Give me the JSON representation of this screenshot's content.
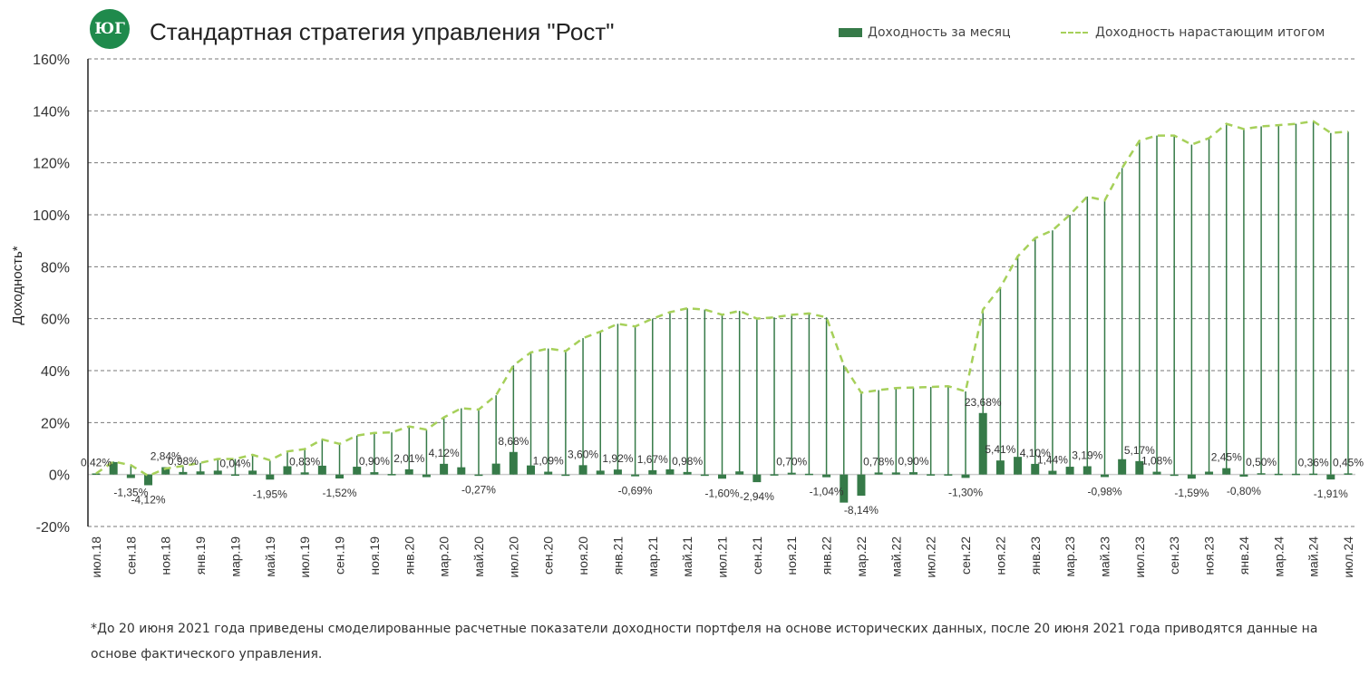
{
  "header": {
    "title": "Стандартная стратегия управления \"Рост\"",
    "logo_text": "ЮГ"
  },
  "legend": {
    "bar": "Доходность за месяц",
    "line": "Доходность нарастающим итогом"
  },
  "footnote": "*До 20 июня 2021 года приведены смоделированные расчетные показатели доходности портфеля на основе исторических данных, после 20 июня 2021 года приводятся данные на основе фактического управления.",
  "chart_data": {
    "type": "bar+line",
    "title": "Стандартная стратегия управления \"Рост\"",
    "ylabel": "Доходность*",
    "xlabel": "",
    "ylim": [
      -20,
      160
    ],
    "yticks": [
      "-20%",
      "0%",
      "20%",
      "40%",
      "60%",
      "80%",
      "100%",
      "120%",
      "140%",
      "160%"
    ],
    "ytick_values": [
      -20,
      0,
      20,
      40,
      60,
      80,
      100,
      120,
      140,
      160
    ],
    "grid": true,
    "legend_placement": "top-right",
    "colors": {
      "bar": "#367a48",
      "line": "#a6d05a",
      "drop": "#367a48"
    },
    "xtick_labels": [
      "июл.18",
      "сен.18",
      "ноя.18",
      "янв.19",
      "мар.19",
      "май.19",
      "июл.19",
      "сен.19",
      "ноя.19",
      "янв.20",
      "мар.20",
      "май.20",
      "июл.20",
      "сен.20",
      "ноя.20",
      "янв.21",
      "мар.21",
      "май.21",
      "июл.21",
      "сен.21",
      "ноя.21",
      "янв.22",
      "мар.22",
      "май.22",
      "июл.22",
      "сен.22",
      "ноя.22",
      "янв.23",
      "мар.23",
      "май.23",
      "июл.23",
      "сен.23",
      "ноя.23",
      "янв.24",
      "мар.24",
      "май.24",
      "июл.24"
    ],
    "series": [
      {
        "name": "Доходность за месяц",
        "type": "bar",
        "values": [
          0.42,
          4.8,
          -1.35,
          -4.12,
          2.84,
          0.98,
          1.2,
          1.5,
          0.04,
          1.5,
          -1.95,
          3.2,
          0.83,
          3.4,
          -1.52,
          3.0,
          0.9,
          0.2,
          2.01,
          -1.0,
          4.12,
          2.8,
          -0.27,
          4.2,
          8.68,
          3.5,
          1.09,
          -0.3,
          3.6,
          1.5,
          1.92,
          -0.69,
          1.67,
          2.0,
          0.98,
          -0.2,
          -1.6,
          1.2,
          -2.94,
          0.1,
          0.7,
          0.3,
          -1.04,
          -10.8,
          -8.14,
          0.78,
          0.8,
          0.9,
          0.1,
          0.1,
          -1.3,
          23.68,
          5.41,
          6.8,
          4.1,
          1.44,
          3.0,
          3.19,
          -0.98,
          5.9,
          5.17,
          1.08,
          0,
          -1.59,
          1.1,
          2.45,
          -0.8,
          0.5,
          0.3,
          0.3,
          0.36,
          -1.91,
          0.45
        ]
      },
      {
        "name": "Доходность нарастающим итогом",
        "type": "line",
        "values": [
          0.4,
          5,
          3.6,
          -0.5,
          2.3,
          3.3,
          4.5,
          6,
          6,
          7.6,
          5.5,
          8.9,
          9.8,
          13.5,
          11.8,
          15,
          16,
          16.2,
          18.5,
          17.3,
          22,
          25.5,
          25,
          30.5,
          42,
          47,
          48.5,
          47.5,
          52.5,
          55,
          58,
          57,
          60,
          62.5,
          64,
          63.5,
          61.5,
          63,
          60,
          60.5,
          61.5,
          62,
          60.5,
          42,
          31.5,
          32.5,
          33.3,
          33.5,
          33.7,
          34,
          32,
          63.5,
          72,
          84,
          91,
          94,
          100,
          107,
          105.5,
          118,
          128.5,
          130.5,
          130.5,
          127,
          129.5,
          135,
          133,
          134,
          134.5,
          135,
          136,
          131.5,
          132
        ]
      }
    ],
    "data_labels": [
      "0,42%",
      null,
      "-1,35%",
      "-4,12%",
      "2,84%",
      "0,98%",
      null,
      null,
      "0,04%",
      null,
      "-1,95%",
      null,
      "0,83%",
      null,
      "-1,52%",
      null,
      "0,90%",
      null,
      "2,01%",
      null,
      "4,12%",
      null,
      "-0,27%",
      null,
      "8,68%",
      null,
      "1,09%",
      null,
      "3,60%",
      null,
      "1,92%",
      "-0,69%",
      "1,67%",
      null,
      "0,98%",
      null,
      "-1,60%",
      null,
      "-2,94%",
      null,
      "0,70%",
      null,
      "-1,04%",
      null,
      "-8,14%",
      "0,78%",
      null,
      "0,90%",
      null,
      null,
      "-1,30%",
      "23,68%",
      "5,41%",
      null,
      "4,10%",
      "1,44%",
      null,
      "3,19%",
      "-0,98%",
      null,
      "5,17%",
      "1,08%",
      null,
      "-1,59%",
      null,
      "2,45%",
      "-0,80%",
      "0,50%",
      null,
      null,
      "0,36%",
      "-1,91%",
      "0,45%"
    ]
  }
}
